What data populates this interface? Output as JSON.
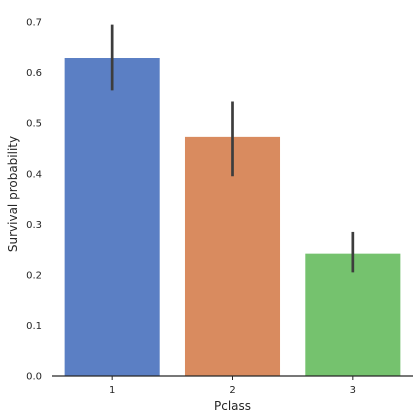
{
  "chart_data": {
    "type": "bar",
    "title": "",
    "xlabel": "Pclass",
    "ylabel": "Survival probability",
    "categories": [
      "1",
      "2",
      "3"
    ],
    "values": [
      0.629,
      0.473,
      0.242
    ],
    "error_low": [
      0.565,
      0.395,
      0.205
    ],
    "error_high": [
      0.695,
      0.543,
      0.285
    ],
    "colors": [
      "#5b7fc4",
      "#d98b5f",
      "#75c26e"
    ],
    "ylim": [
      0,
      0.72
    ],
    "yticks": [
      "0.0",
      "0.1",
      "0.2",
      "0.3",
      "0.4",
      "0.5",
      "0.6",
      "0.7"
    ],
    "grid": false,
    "legend": "none"
  }
}
